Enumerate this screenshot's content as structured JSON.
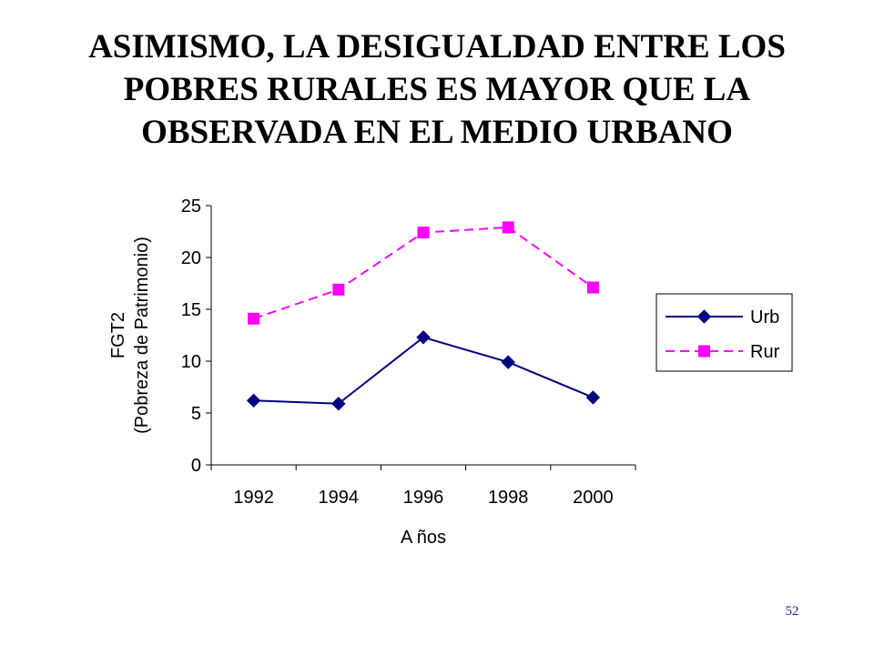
{
  "slide": {
    "title_lines": [
      "ASIMISMO, LA DESIGUALDAD ENTRE LOS",
      "POBRES RURALES ES MAYOR QUE LA",
      "OBSERVADA EN EL MEDIO URBANO"
    ],
    "page_number": "52"
  },
  "chart_data": {
    "type": "line",
    "title": "",
    "xlabel": "A ños",
    "ylabel_lines": [
      "FGT2",
      "(Pobreza de Patrimonio)"
    ],
    "categories": [
      "1992",
      "1994",
      "1996",
      "1998",
      "2000"
    ],
    "ylim": [
      0,
      25
    ],
    "yticks": [
      "0",
      "5",
      "10",
      "15",
      "20",
      "25"
    ],
    "grid": false,
    "legend_position": "right",
    "series": [
      {
        "name": "Urb",
        "values": [
          6.2,
          5.9,
          12.3,
          9.9,
          6.5
        ],
        "color": "#000080",
        "marker": "diamond",
        "line_style": "solid"
      },
      {
        "name": "Rur",
        "values": [
          14.1,
          16.9,
          22.4,
          22.9,
          17.1
        ],
        "color": "#ff00ff",
        "marker": "square",
        "line_style": "dashed"
      }
    ]
  }
}
